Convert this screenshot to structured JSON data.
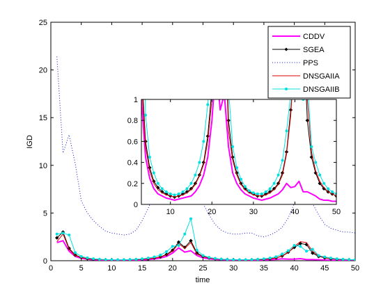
{
  "chart_data": [
    {
      "type": "line",
      "role": "main",
      "xlabel": "time",
      "ylabel": "IGD",
      "xlim": [
        0,
        50
      ],
      "ylim": [
        0,
        25
      ],
      "xticks": [
        0,
        5,
        10,
        15,
        20,
        25,
        30,
        35,
        40,
        45,
        50
      ],
      "yticks": [
        0,
        5,
        10,
        15,
        20,
        25
      ],
      "legend_position": "top-right",
      "x": [
        1,
        2,
        3,
        4,
        5,
        6,
        7,
        8,
        9,
        10,
        11,
        12,
        13,
        14,
        15,
        16,
        17,
        18,
        19,
        20,
        21,
        22,
        23,
        24,
        25,
        26,
        27,
        28,
        29,
        30,
        31,
        32,
        33,
        34,
        35,
        36,
        37,
        38,
        39,
        40,
        41,
        42,
        43,
        44,
        45,
        46,
        47,
        48,
        49,
        50
      ],
      "series": [
        {
          "name": "CDDV",
          "color": "#ff00ff",
          "style": "solid",
          "width": 2,
          "marker": "none",
          "values": [
            1.9,
            2.1,
            1.0,
            0.45,
            0.25,
            0.15,
            0.1,
            0.08,
            0.06,
            0.05,
            0.04,
            0.05,
            0.06,
            0.07,
            0.08,
            0.12,
            0.18,
            0.28,
            0.45,
            0.8,
            1.35,
            0.9,
            1.05,
            0.55,
            0.3,
            0.2,
            0.14,
            0.1,
            0.08,
            0.06,
            0.05,
            0.04,
            0.05,
            0.06,
            0.08,
            0.1,
            0.14,
            0.2,
            0.16,
            0.17,
            0.22,
            0.12,
            0.12,
            0.1,
            0.08,
            0.05,
            0.04,
            0.04,
            0.03,
            0.03
          ]
        },
        {
          "name": "SGEA",
          "color": "#000000",
          "style": "solid",
          "width": 1,
          "marker": "diamond",
          "values": [
            2.4,
            3.0,
            1.3,
            0.6,
            0.35,
            0.22,
            0.16,
            0.12,
            0.1,
            0.08,
            0.07,
            0.08,
            0.1,
            0.12,
            0.15,
            0.2,
            0.28,
            0.4,
            0.65,
            1.1,
            1.95,
            1.4,
            2.1,
            0.8,
            0.45,
            0.3,
            0.2,
            0.15,
            0.12,
            0.1,
            0.08,
            0.08,
            0.1,
            0.12,
            0.15,
            0.2,
            0.3,
            0.5,
            0.9,
            1.4,
            1.8,
            1.7,
            0.8,
            0.45,
            0.3,
            0.2,
            0.15,
            0.12,
            0.1,
            0.08
          ]
        },
        {
          "name": "PPS",
          "color": "#1010cc",
          "style": "dotted",
          "width": 1,
          "marker": "none",
          "values": [
            21.4,
            11.3,
            13.2,
            10.2,
            6.3,
            5.0,
            4.2,
            3.6,
            3.1,
            2.9,
            2.8,
            2.7,
            2.8,
            3.2,
            4.2,
            5.5,
            7.0,
            8.5,
            10.0,
            11.5,
            12.8,
            9.7,
            8.6,
            7.3,
            6.0,
            4.8,
            3.8,
            3.2,
            2.9,
            2.8,
            2.8,
            2.9,
            2.9,
            2.6,
            2.5,
            2.7,
            3.0,
            3.5,
            4.5,
            6.0,
            10.5,
            7.4,
            6.0,
            4.8,
            3.8,
            3.4,
            3.2,
            3.0,
            3.0,
            2.9
          ]
        },
        {
          "name": "DNSGAIIA",
          "color": "#dd0000",
          "style": "solid",
          "width": 1,
          "marker": "none",
          "values": [
            2.0,
            2.8,
            1.2,
            0.55,
            0.32,
            0.2,
            0.14,
            0.11,
            0.09,
            0.08,
            0.07,
            0.08,
            0.09,
            0.11,
            0.14,
            0.19,
            0.27,
            0.38,
            0.6,
            1.0,
            1.8,
            1.3,
            1.9,
            0.7,
            0.42,
            0.28,
            0.19,
            0.14,
            0.11,
            0.09,
            0.08,
            0.08,
            0.09,
            0.11,
            0.14,
            0.19,
            0.28,
            0.48,
            0.85,
            1.5,
            2.0,
            1.9,
            1.0,
            0.5,
            0.32,
            0.22,
            0.16,
            0.12,
            0.1,
            0.08
          ]
        },
        {
          "name": "DNSGAIIB",
          "color": "#00e0e0",
          "style": "solid",
          "width": 1,
          "marker": "circle",
          "values": [
            2.8,
            2.9,
            2.7,
            0.85,
            0.45,
            0.3,
            0.2,
            0.15,
            0.12,
            0.1,
            0.09,
            0.1,
            0.12,
            0.15,
            0.2,
            0.28,
            0.4,
            0.6,
            0.95,
            1.5,
            1.6,
            2.8,
            4.4,
            1.1,
            0.55,
            0.35,
            0.24,
            0.17,
            0.13,
            0.11,
            0.1,
            0.1,
            0.12,
            0.15,
            0.2,
            0.28,
            0.42,
            0.7,
            1.05,
            1.6,
            1.5,
            1.0,
            1.2,
            0.55,
            0.4,
            0.28,
            0.2,
            0.15,
            0.12,
            0.1
          ]
        }
      ]
    },
    {
      "type": "line",
      "role": "inset",
      "xlim": [
        3,
        50
      ],
      "ylim": [
        0,
        1
      ],
      "xticks": [
        10,
        20,
        30,
        40,
        50
      ],
      "yticks": [
        0,
        0.2,
        0.4,
        0.6,
        0.8,
        1
      ],
      "ytick_labels": [
        "0",
        "0.2",
        "0.4",
        "0.6",
        "0.8",
        "1"
      ],
      "series_from": "main"
    }
  ]
}
